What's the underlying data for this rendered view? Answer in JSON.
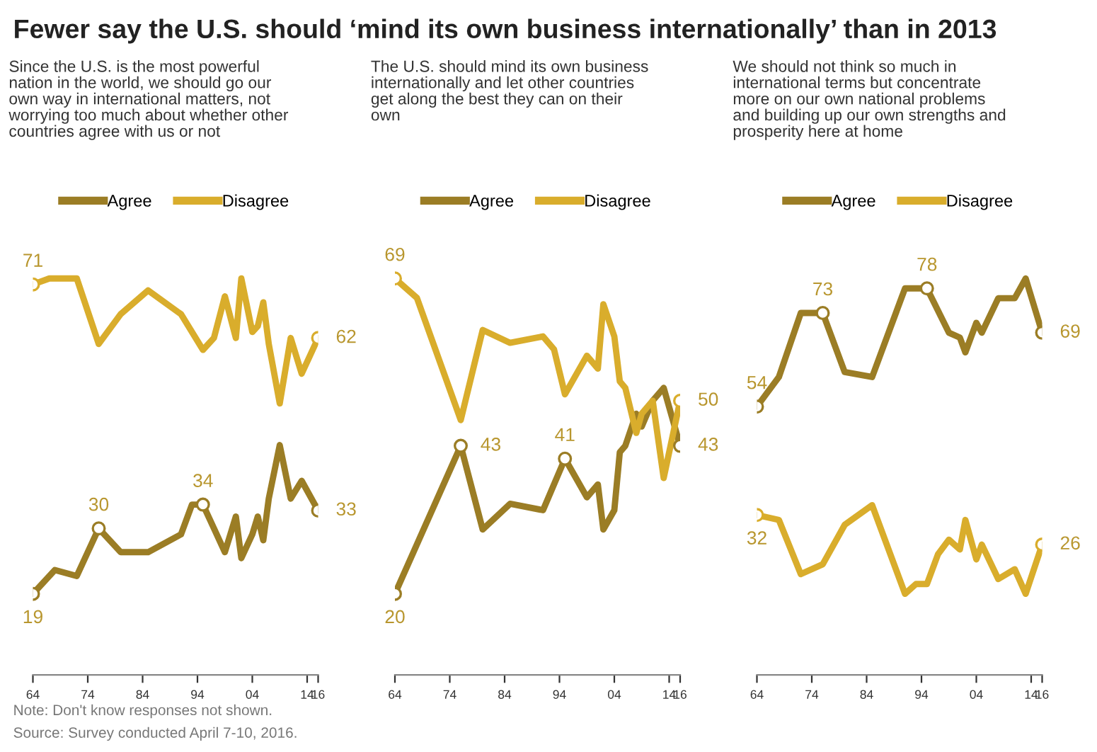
{
  "chart_data": [
    {
      "type": "line",
      "title": "Fewer say the U.S. should ‘mind its own business internationally’ than in 2013",
      "subtitle": "Since the U.S. is the most powerful\nnation in the world, we should go our\nown way in international matters, not\nworrying too much about whether other\ncountries agree with us or not",
      "annotations": [
        "Note: Don't know responses not shown.",
        "Source: Survey conducted April 7-10, 2016."
      ],
      "xlim": [
        1964,
        2016
      ],
      "xticks": [
        {
          "value": 1964,
          "label": "64"
        },
        {
          "value": 1974,
          "label": "74"
        },
        {
          "value": 1984,
          "label": "84"
        },
        {
          "value": 1994,
          "label": "94"
        },
        {
          "value": 2004,
          "label": "04"
        },
        {
          "value": 2014,
          "label": "14"
        },
        {
          "value": 2016,
          "label": "16"
        }
      ],
      "tick_labels": "x",
      "grid": false,
      "legend": "top",
      "series": [
        {
          "name": "Agree",
          "color": "#9b7d25",
          "x": [
            1964,
            1968,
            1972,
            1976,
            1980,
            1985,
            1991,
            1993,
            1995,
            1997,
            1999,
            2001,
            2002,
            2004,
            2005,
            2006,
            2007,
            2009,
            2011,
            2013,
            2016
          ],
          "values": [
            19,
            23,
            22,
            30,
            26,
            26,
            29,
            34,
            34,
            30,
            26,
            32,
            25,
            29,
            32,
            28,
            35,
            44,
            35,
            38,
            33
          ],
          "value_labels": [
            "19",
            null,
            null,
            "30",
            null,
            null,
            null,
            null,
            "34",
            null,
            null,
            null,
            null,
            null,
            null,
            null,
            null,
            null,
            null,
            null,
            "33"
          ]
        },
        {
          "name": "Disagree",
          "color": "#d9ad2c",
          "x": [
            1964,
            1967,
            1972,
            1976,
            1980,
            1985,
            1991,
            1995,
            1997,
            1999,
            2001,
            2002,
            2004,
            2005,
            2006,
            2007,
            2009,
            2011,
            2013,
            2016
          ],
          "values": [
            71,
            72,
            72,
            61,
            66,
            70,
            66,
            60,
            62,
            69,
            62,
            72,
            63,
            64,
            68,
            61,
            51,
            62,
            56,
            62
          ],
          "value_labels": [
            "71",
            null,
            null,
            null,
            null,
            null,
            null,
            null,
            null,
            null,
            null,
            null,
            null,
            null,
            null,
            null,
            null,
            null,
            null,
            "62"
          ]
        }
      ]
    },
    {
      "type": "line",
      "subtitle": "The U.S. should mind its own business\ninternationally and let other countries\nget along the best they can on their\nown",
      "xlim": [
        1964,
        2016
      ],
      "xticks": [
        {
          "value": 1964,
          "label": "64"
        },
        {
          "value": 1974,
          "label": "74"
        },
        {
          "value": 1984,
          "label": "84"
        },
        {
          "value": 1994,
          "label": "94"
        },
        {
          "value": 2004,
          "label": "04"
        },
        {
          "value": 2014,
          "label": "14"
        },
        {
          "value": 2016,
          "label": "16"
        }
      ],
      "tick_labels": "x",
      "grid": false,
      "legend": "top",
      "series": [
        {
          "name": "Agree",
          "color": "#9b7d25",
          "x": [
            1964,
            1976,
            1980,
            1985,
            1991,
            1995,
            1999,
            2001,
            2002,
            2004,
            2005,
            2006,
            2008,
            2009,
            2011,
            2013,
            2016
          ],
          "values": [
            20,
            43,
            30,
            34,
            33,
            41,
            35,
            37,
            30,
            33,
            42,
            43,
            48,
            46,
            50,
            52,
            43
          ],
          "value_labels": [
            "20",
            "43",
            null,
            null,
            null,
            "41",
            null,
            null,
            null,
            null,
            null,
            null,
            null,
            null,
            null,
            null,
            "43"
          ]
        },
        {
          "name": "Disagree",
          "color": "#d9ad2c",
          "x": [
            1964,
            1968,
            1976,
            1980,
            1985,
            1991,
            1993,
            1995,
            1999,
            2001,
            2002,
            2004,
            2005,
            2006,
            2008,
            2009,
            2011,
            2013,
            2016
          ],
          "values": [
            69,
            66,
            47,
            61,
            59,
            60,
            58,
            51,
            57,
            55,
            65,
            60,
            53,
            52,
            45,
            48,
            50,
            38,
            50
          ],
          "value_labels": [
            "69",
            null,
            null,
            null,
            null,
            null,
            null,
            null,
            null,
            null,
            null,
            null,
            null,
            null,
            null,
            null,
            null,
            null,
            "50"
          ]
        }
      ]
    },
    {
      "type": "line",
      "subtitle": "We should not think so much in\ninternational terms but concentrate\nmore on our own national problems\nand building up our own strengths and\nprosperity here at home",
      "xlim": [
        1964,
        2016
      ],
      "xticks": [
        {
          "value": 1964,
          "label": "64"
        },
        {
          "value": 1974,
          "label": "74"
        },
        {
          "value": 1984,
          "label": "84"
        },
        {
          "value": 1994,
          "label": "94"
        },
        {
          "value": 2004,
          "label": "04"
        },
        {
          "value": 2014,
          "label": "14"
        },
        {
          "value": 2016,
          "label": "16"
        }
      ],
      "tick_labels": "x",
      "grid": false,
      "legend": "top",
      "series": [
        {
          "name": "Agree",
          "color": "#9b7d25",
          "x": [
            1964,
            1968,
            1972,
            1976,
            1980,
            1985,
            1991,
            1995,
            1999,
            2001,
            2002,
            2004,
            2005,
            2008,
            2011,
            2013,
            2016
          ],
          "values": [
            54,
            60,
            73,
            73,
            61,
            60,
            78,
            78,
            69,
            68,
            65,
            71,
            69,
            76,
            76,
            80,
            69
          ],
          "value_labels": [
            "54",
            null,
            null,
            "73",
            null,
            null,
            null,
            "78",
            null,
            null,
            null,
            null,
            null,
            null,
            null,
            null,
            "69"
          ]
        },
        {
          "name": "Disagree",
          "color": "#d9ad2c",
          "x": [
            1964,
            1968,
            1972,
            1976,
            1980,
            1985,
            1991,
            1993,
            1995,
            1997,
            1999,
            2001,
            2002,
            2004,
            2005,
            2008,
            2011,
            2013,
            2016
          ],
          "values": [
            32,
            31,
            20,
            22,
            30,
            34,
            16,
            18,
            18,
            24,
            27,
            25,
            31,
            23,
            26,
            19,
            21,
            16,
            26
          ],
          "value_labels": [
            "32",
            null,
            null,
            null,
            null,
            null,
            null,
            null,
            null,
            null,
            null,
            null,
            null,
            null,
            null,
            null,
            null,
            null,
            "26"
          ]
        }
      ]
    }
  ]
}
